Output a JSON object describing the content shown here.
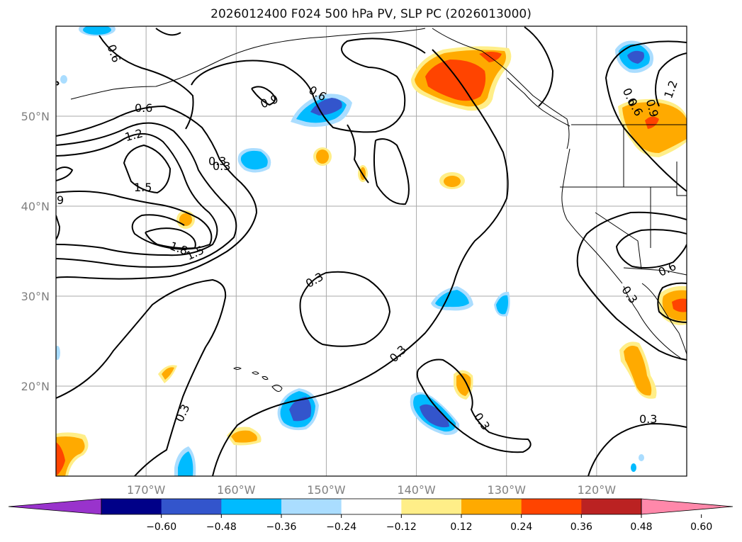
{
  "title": "2026012400 F024 500 hPa PV, SLP PC (2026013000)",
  "map": {
    "lon_range": [
      -180,
      -110
    ],
    "lat_range": [
      10,
      60
    ],
    "lon_gridlines": [
      -170,
      -160,
      -150,
      -140,
      -130,
      -120,
      -110
    ],
    "lat_gridlines": [
      20,
      30,
      40,
      50
    ],
    "lon_labels": [
      "170°W",
      "160°W",
      "150°W",
      "140°W",
      "130°W",
      "120°W"
    ],
    "lat_labels": [
      "20°N",
      "30°N",
      "40°N",
      "50°N"
    ],
    "gridline_color": "#aaaaaa",
    "coastline_color": "#000000",
    "contour_color": "#000000"
  },
  "contour_labels": [
    "0.6",
    "0.9",
    "0.6",
    "0.6",
    "1.2",
    "0.3",
    "1.5",
    "9",
    "1.8",
    "1.5",
    "0.3",
    "0.3",
    "0.3",
    "0.3",
    "0.6",
    "0.9",
    "1.2",
    "0.6",
    "0.3",
    "0.3",
    "0.3",
    "0.6"
  ],
  "colorbar": {
    "ticks": [
      "−0.60",
      "−0.48",
      "−0.36",
      "−0.24",
      "−0.12",
      "0.12",
      "0.24",
      "0.36",
      "0.48",
      "0.60"
    ],
    "colors": [
      "#9933cc",
      "#000088",
      "#3355cc",
      "#00bbff",
      "#aaddff",
      "#ffffff",
      "#ffee88",
      "#ffaa00",
      "#ff4400",
      "#bb2222",
      "#ff88aa"
    ]
  }
}
